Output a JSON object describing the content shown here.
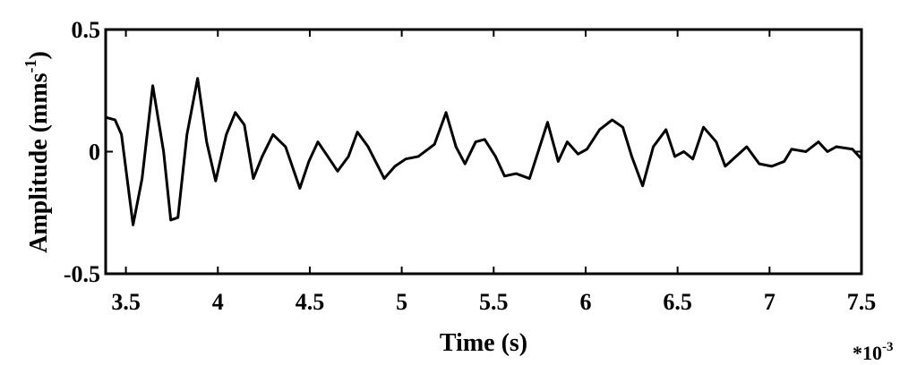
{
  "chart_data": {
    "type": "line",
    "xlabel": "Time (s)",
    "ylabel": "Amplitude (mms",
    "ylabel_superscript": "-1",
    "ylabel_end": ")",
    "x_multiplier": "*10",
    "x_multiplier_exponent": "-3",
    "color": "#000000",
    "xlim": [
      3.39,
      7.5
    ],
    "ylim": [
      -0.5,
      0.5
    ],
    "xticks": [
      3.5,
      4,
      4.5,
      5,
      5.5,
      6,
      6.5,
      7,
      7.5
    ],
    "yticks": [
      -0.5,
      0,
      0.5
    ],
    "x": [
      3.393,
      3.441,
      3.476,
      3.539,
      3.588,
      3.646,
      3.705,
      3.744,
      3.783,
      3.832,
      3.89,
      3.939,
      3.988,
      4.046,
      4.095,
      4.144,
      4.193,
      4.241,
      4.3,
      4.368,
      4.446,
      4.495,
      4.544,
      4.598,
      4.651,
      4.71,
      4.759,
      4.817,
      4.905,
      4.963,
      5.022,
      5.09,
      5.178,
      5.241,
      5.295,
      5.344,
      5.402,
      5.451,
      5.51,
      5.559,
      5.622,
      5.695,
      5.793,
      5.851,
      5.9,
      5.959,
      6.007,
      6.076,
      6.144,
      6.202,
      6.251,
      6.31,
      6.368,
      6.437,
      6.485,
      6.534,
      6.583,
      6.641,
      6.71,
      6.759,
      6.817,
      6.876,
      6.944,
      7.012,
      7.08,
      7.12,
      7.198,
      7.266,
      7.315,
      7.363,
      7.451,
      7.5
    ],
    "values": [
      0.14,
      0.13,
      0.07,
      -0.3,
      -0.11,
      0.27,
      0.0,
      -0.28,
      -0.27,
      0.07,
      0.3,
      0.04,
      -0.12,
      0.07,
      0.16,
      0.11,
      -0.11,
      -0.02,
      0.07,
      0.02,
      -0.15,
      -0.04,
      0.04,
      -0.02,
      -0.08,
      -0.02,
      0.08,
      0.02,
      -0.11,
      -0.06,
      -0.03,
      -0.02,
      0.03,
      0.16,
      0.02,
      -0.05,
      0.04,
      0.05,
      -0.02,
      -0.1,
      -0.09,
      -0.11,
      0.12,
      -0.04,
      0.04,
      -0.01,
      0.01,
      0.09,
      0.13,
      0.1,
      -0.02,
      -0.14,
      0.02,
      0.09,
      -0.02,
      0.0,
      -0.03,
      0.1,
      0.04,
      -0.06,
      -0.02,
      0.02,
      -0.05,
      -0.06,
      -0.04,
      0.01,
      0.0,
      0.04,
      0.0,
      0.02,
      0.01,
      -0.03
    ]
  }
}
